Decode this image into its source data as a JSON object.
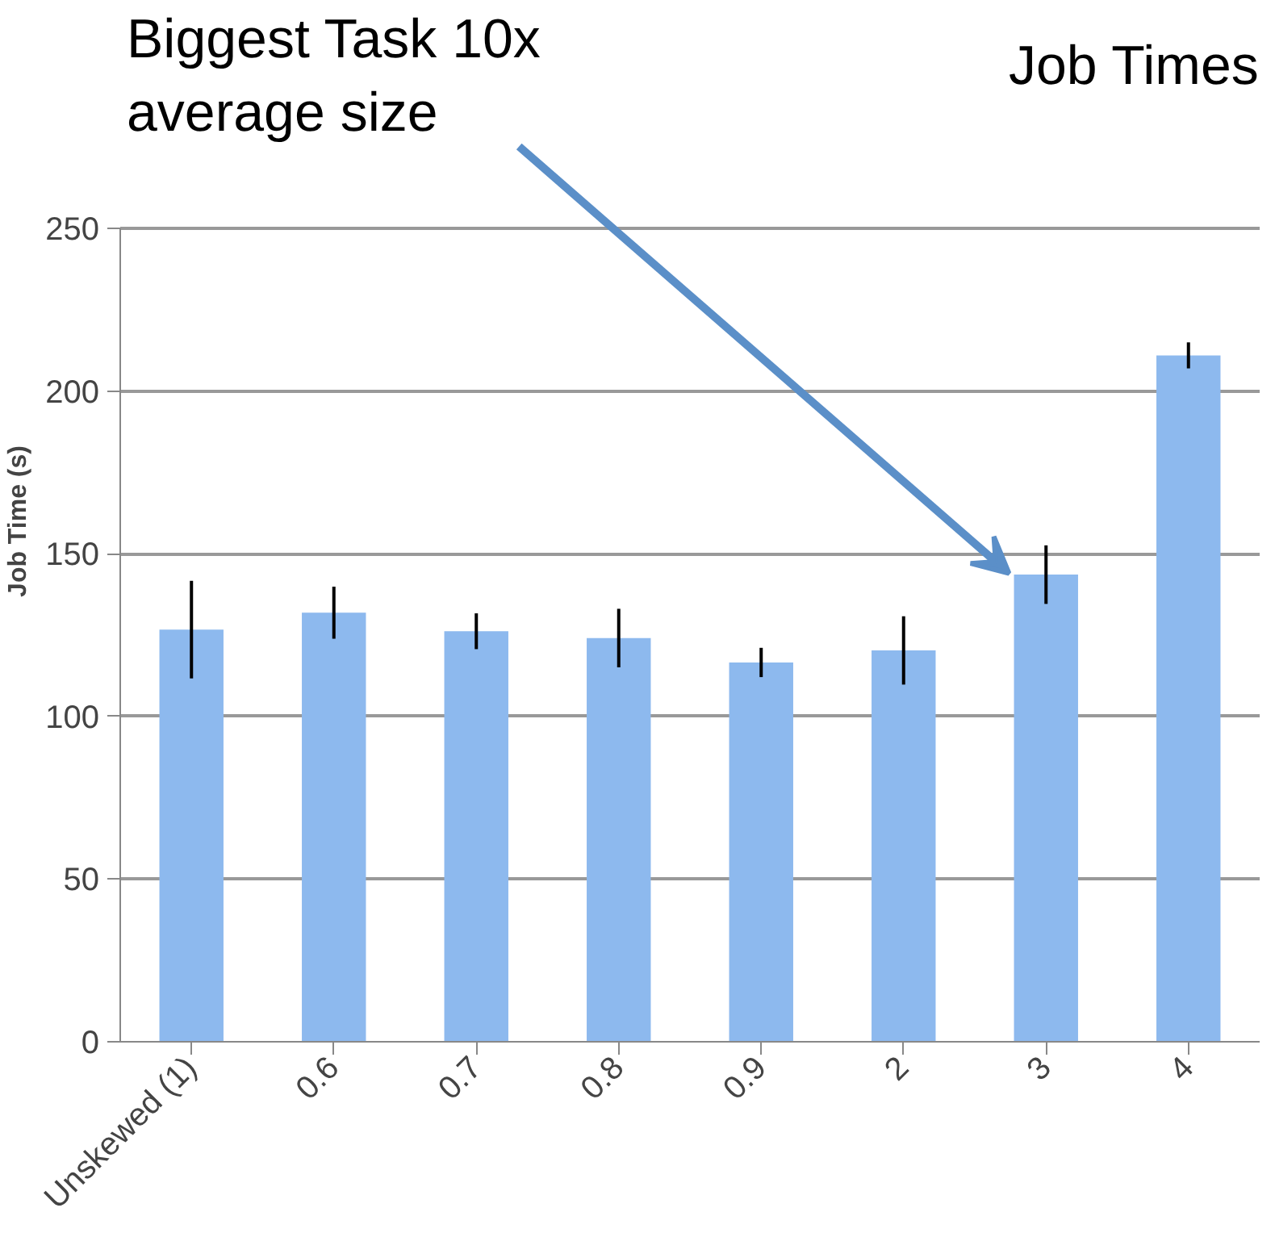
{
  "chart_data": {
    "type": "bar",
    "title": "Job Times",
    "ylabel": "Job Time (s)",
    "categories": [
      "Unskewed (1)",
      "0.6",
      "0.7",
      "0.8",
      "0.9",
      "2",
      "3",
      "4"
    ],
    "values": [
      126.7,
      131.9,
      126.2,
      124.1,
      116.6,
      120.3,
      143.6,
      211
    ],
    "errors": [
      15,
      8,
      5.5,
      9,
      4.5,
      10.5,
      9,
      4
    ],
    "color": "#8db9ee",
    "ylim": [
      0,
      250
    ],
    "yticks": [
      0,
      50,
      100,
      150,
      200,
      250
    ],
    "grid": "y",
    "annotations": [
      "Biggest Task 10x\naverage size"
    ]
  }
}
